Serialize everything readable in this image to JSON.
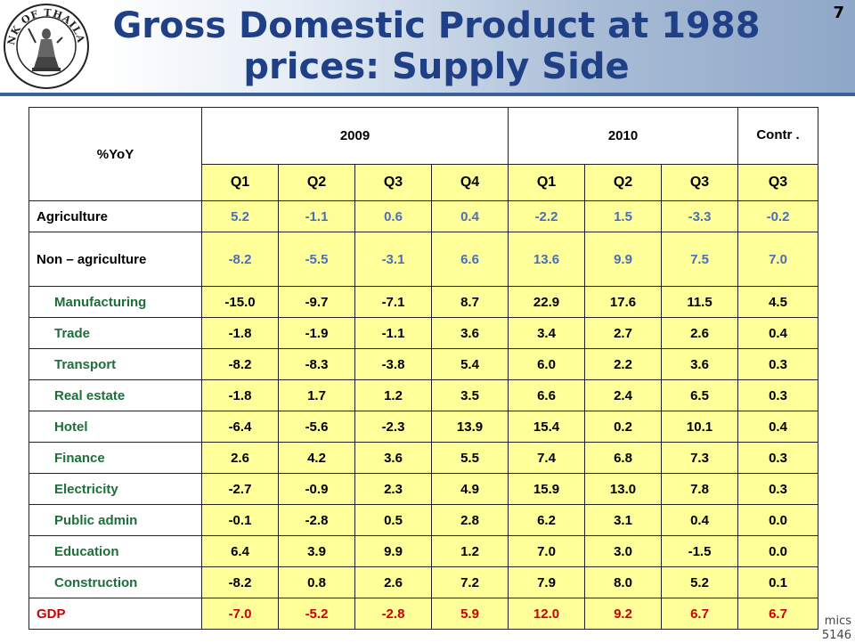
{
  "title": "Gross Domestic Product at 1988 prices: Supply Side",
  "page_number": "7",
  "logo": {
    "text": "BANK OF THAILAND",
    "icon": "bank-seal-icon"
  },
  "footer_fragment": [
    "mics",
    "5146"
  ],
  "table": {
    "corner_label": "%YoY",
    "year_2009": "2009",
    "year_2010": "2010",
    "contr_label": "Contr .",
    "quarters": [
      "Q1",
      "Q2",
      "Q3",
      "Q4",
      "Q1",
      "Q2",
      "Q3",
      "Q3"
    ],
    "rows": [
      {
        "label": "Agriculture",
        "values": [
          "5.2",
          "-1.1",
          "0.6",
          "0.4",
          "-2.2",
          "1.5",
          "-3.3",
          "-0.2"
        ]
      },
      {
        "label": "Non – agriculture",
        "values": [
          "-8.2",
          "-5.5",
          "-3.1",
          "6.6",
          "13.6",
          "9.9",
          "7.5",
          "7.0"
        ]
      },
      {
        "label": "Manufacturing",
        "values": [
          "-15.0",
          "-9.7",
          "-7.1",
          "8.7",
          "22.9",
          "17.6",
          "11.5",
          "4.5"
        ]
      },
      {
        "label": "Trade",
        "values": [
          "-1.8",
          "-1.9",
          "-1.1",
          "3.6",
          "3.4",
          "2.7",
          "2.6",
          "0.4"
        ]
      },
      {
        "label": "Transport",
        "values": [
          "-8.2",
          "-8.3",
          "-3.8",
          "5.4",
          "6.0",
          "2.2",
          "3.6",
          "0.3"
        ]
      },
      {
        "label": "Real estate",
        "values": [
          "-1.8",
          "1.7",
          "1.2",
          "3.5",
          "6.6",
          "2.4",
          "6.5",
          "0.3"
        ]
      },
      {
        "label": "Hotel",
        "values": [
          "-6.4",
          "-5.6",
          "-2.3",
          "13.9",
          "15.4",
          "0.2",
          "10.1",
          "0.4"
        ]
      },
      {
        "label": "Finance",
        "values": [
          "2.6",
          "4.2",
          "3.6",
          "5.5",
          "7.4",
          "6.8",
          "7.3",
          "0.3"
        ]
      },
      {
        "label": "Electricity",
        "values": [
          "-2.7",
          "-0.9",
          "2.3",
          "4.9",
          "15.9",
          "13.0",
          "7.8",
          "0.3"
        ]
      },
      {
        "label": "Public admin",
        "values": [
          "-0.1",
          "-2.8",
          "0.5",
          "2.8",
          "6.2",
          "3.1",
          "0.4",
          "0.0"
        ]
      },
      {
        "label": "Education",
        "values": [
          "6.4",
          "3.9",
          "9.9",
          "1.2",
          "7.0",
          "3.0",
          "-1.5",
          "0.0"
        ]
      },
      {
        "label": "Construction",
        "values": [
          "-8.2",
          "0.8",
          "2.6",
          "7.2",
          "7.9",
          "8.0",
          "5.2",
          "0.1"
        ]
      },
      {
        "label": "GDP",
        "values": [
          "-7.0",
          "-5.2",
          "-2.8",
          "5.9",
          "12.0",
          "9.2",
          "6.7",
          "6.7"
        ]
      }
    ]
  }
}
